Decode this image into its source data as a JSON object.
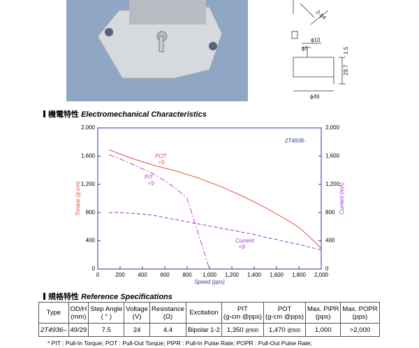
{
  "drawing_labels": [
    "2-ϕ4",
    "ϕ10",
    "ϕ3",
    "1.5",
    "29.7",
    "ϕ49"
  ],
  "section1": {
    "mark": "機電特性",
    "title": "Electromechanical Characteristics"
  },
  "chart_data": {
    "type": "line",
    "subtitle": "2T4936-",
    "x_label": "Speed (pps)",
    "y_label": "Torque (g-cm)",
    "y2_label": "Current (mA)",
    "x": [
      100,
      200,
      300,
      400,
      500,
      600,
      700,
      800,
      900,
      1000,
      1100,
      1200,
      1300,
      1400,
      1500,
      1600,
      1700,
      1800,
      1900,
      2000
    ],
    "series": [
      {
        "name": "POT",
        "color": "#e0503c",
        "dash": "none",
        "values": [
          1690,
          1630,
          1570,
          1520,
          1470,
          1430,
          1390,
          1340,
          1290,
          1230,
          1170,
          1100,
          1030,
          950,
          870,
          780,
          690,
          590,
          450,
          290
        ]
      },
      {
        "name": "PIT",
        "color": "#b040d0",
        "dash": "8 3 2 3",
        "values": [
          1620,
          1560,
          1490,
          1420,
          1350,
          1250,
          1140,
          1000,
          500,
          0,
          null,
          null,
          null,
          null,
          null,
          null,
          null,
          null,
          null,
          null
        ]
      },
      {
        "name": "Current",
        "color": "#a030c8",
        "dash": "5 3",
        "axis": "y2",
        "values": [
          800,
          800,
          790,
          780,
          760,
          730,
          700,
          670,
          640,
          610,
          580,
          550,
          520,
          490,
          450,
          420,
          380,
          350,
          310,
          270
        ]
      }
    ],
    "xlim": [
      0,
      2000
    ],
    "xticks": [
      0,
      200,
      400,
      600,
      800,
      {
        "value": 1000,
        "label": "1,000"
      },
      {
        "value": 1200,
        "label": "1,200"
      },
      {
        "value": 1400,
        "label": "1,400"
      },
      {
        "value": 1600,
        "label": "1,600"
      },
      {
        "value": 1800,
        "label": "1,800"
      },
      {
        "value": 2000,
        "label": "2,000"
      }
    ],
    "ylim": [
      0,
      2000
    ],
    "yticks": [
      0,
      400,
      800,
      {
        "value": 1200,
        "label": "1,200"
      },
      {
        "value": 1600,
        "label": "1,600"
      },
      {
        "value": 2000,
        "label": "2,000"
      }
    ],
    "y2lim": [
      0,
      2000
    ],
    "y2ticks": [
      0,
      400,
      800,
      {
        "value": 1200,
        "label": "1,200"
      },
      {
        "value": 1600,
        "label": "1,600"
      },
      {
        "value": 2000,
        "label": "2,000"
      }
    ]
  },
  "section2": {
    "mark": "規格特性",
    "title": "Reference Specifications"
  },
  "table": {
    "header": [
      [
        "Type"
      ],
      [
        "OD/H",
        "(mm)"
      ],
      [
        "Step Angle",
        "( ° )"
      ],
      [
        "Voltage",
        "(V)"
      ],
      [
        "Resistance",
        "(Ω)"
      ],
      [
        "Excitation"
      ],
      [
        "PIT",
        "(g-cm @pps)"
      ],
      [
        "POT",
        "(g-cm @pps)"
      ],
      [
        "Max. PIPR",
        "(pps)"
      ],
      [
        "Max. POPR",
        "(pps)"
      ]
    ],
    "rows": [
      [
        "2T4936–",
        "49/29",
        "7.5",
        "24",
        "4.4",
        "Bipolar 1-2",
        {
          "value": "1,350",
          "note": "@500"
        },
        {
          "value": "1,470",
          "note": "@500"
        },
        "1,000",
        ">2,000"
      ]
    ]
  },
  "footnote": "* PIT : Pull-In Torque; POT : Pull-Out Torque; PIPR : Pull-In Pulse Rate; POPR : Pull-Out Pulse Rate;"
}
